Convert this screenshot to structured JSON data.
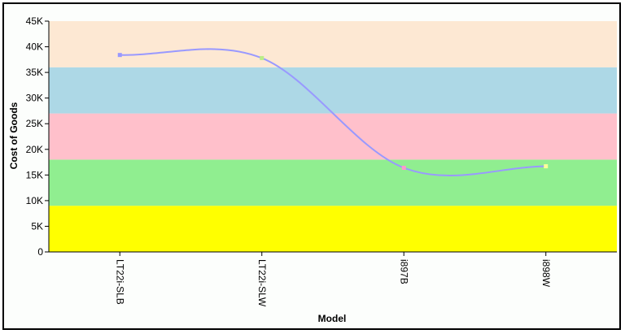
{
  "chart_data": {
    "type": "line",
    "title": "",
    "xlabel": "Model",
    "ylabel": "Cost of Goods",
    "categories": [
      "LT22i-SLB",
      "LT22i-SLW",
      "i897B",
      "i898W"
    ],
    "series": [
      {
        "values": [
          38400,
          37800,
          16400,
          16700
        ],
        "color": "#9999ff"
      }
    ],
    "point_colors": [
      "#9999ff",
      "#bbee88",
      "#ff99cc",
      "#ffff99"
    ],
    "ylim": [
      0,
      45000
    ],
    "yticks": [
      0,
      5000,
      10000,
      15000,
      20000,
      25000,
      30000,
      35000,
      40000,
      45000
    ],
    "ytick_labels": [
      "0",
      "5K",
      "10K",
      "15K",
      "20K",
      "25K",
      "30K",
      "35K",
      "40K",
      "45K"
    ],
    "bands": [
      {
        "from": 0,
        "to": 9000,
        "color": "#ffff00"
      },
      {
        "from": 9000,
        "to": 18000,
        "color": "#90ee90"
      },
      {
        "from": 18000,
        "to": 27000,
        "color": "#ffc0cb"
      },
      {
        "from": 27000,
        "to": 36000,
        "color": "#add8e6"
      },
      {
        "from": 36000,
        "to": 45000,
        "color": "#fde8d3"
      }
    ],
    "grid": false,
    "legend": "none"
  }
}
